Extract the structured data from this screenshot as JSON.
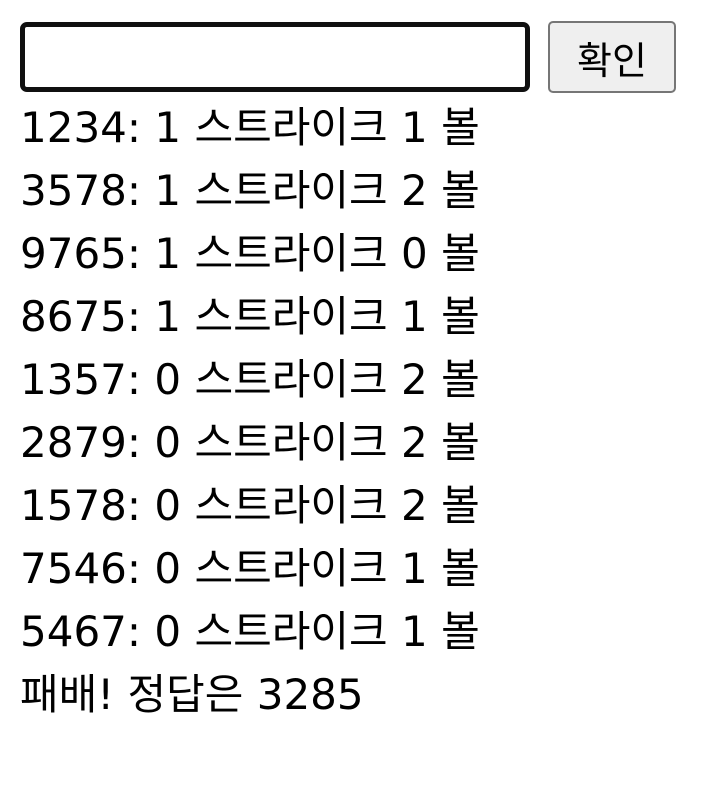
{
  "form": {
    "input_value": "",
    "button_label": "확인"
  },
  "log": [
    "1234: 1 스트라이크 1 볼",
    "3578: 1 스트라이크 2 볼",
    "9765: 1 스트라이크 0 볼",
    "8675: 1 스트라이크 1 볼",
    "1357: 0 스트라이크 2 볼",
    "2879: 0 스트라이크 2 볼",
    "1578: 0 스트라이크 2 볼",
    "7546: 0 스트라이크 1 볼",
    "5467: 0 스트라이크 1 볼",
    "패배! 정답은 3285"
  ]
}
